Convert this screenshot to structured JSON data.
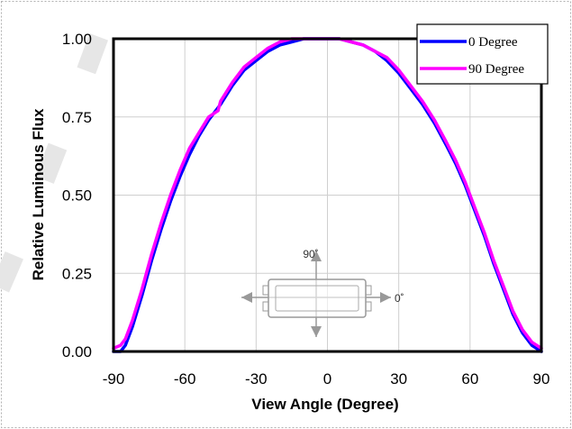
{
  "chart_data": {
    "type": "line",
    "title": "",
    "xlabel": "View Angle (Degree)",
    "ylabel": "Relative Luminous Flux",
    "xlim": [
      -90,
      90
    ],
    "ylim": [
      0,
      1
    ],
    "xticks": [
      -90,
      -60,
      -30,
      0,
      30,
      60,
      90
    ],
    "xtick_labels": [
      "-90",
      "-60",
      "-30",
      "0",
      "30",
      "60",
      "90"
    ],
    "yticks": [
      0,
      0.25,
      0.5,
      0.75,
      1
    ],
    "ytick_labels": [
      "0.00",
      "0.25",
      "0.50",
      "0.75",
      "1.00"
    ],
    "grid": true,
    "legend": "top-right",
    "series": [
      {
        "name": "0 Degree",
        "color": "#0000ff",
        "x": [
          -90,
          -87,
          -85,
          -82,
          -78,
          -74,
          -70,
          -66,
          -62,
          -58,
          -54,
          -50,
          -45,
          -40,
          -35,
          -30,
          -25,
          -20,
          -15,
          -10,
          -5,
          0,
          5,
          10,
          15,
          20,
          25,
          30,
          35,
          40,
          45,
          50,
          54,
          58,
          62,
          66,
          70,
          74,
          78,
          82,
          86,
          88,
          90
        ],
        "y": [
          0.0,
          0.0,
          0.02,
          0.08,
          0.18,
          0.29,
          0.39,
          0.48,
          0.56,
          0.63,
          0.69,
          0.74,
          0.79,
          0.85,
          0.9,
          0.93,
          0.96,
          0.98,
          0.99,
          1.0,
          1.0,
          1.0,
          1.0,
          0.99,
          0.98,
          0.96,
          0.93,
          0.89,
          0.84,
          0.79,
          0.73,
          0.66,
          0.6,
          0.53,
          0.45,
          0.37,
          0.28,
          0.2,
          0.12,
          0.06,
          0.02,
          0.01,
          0.0
        ]
      },
      {
        "name": "90 Degree",
        "color": "#ff00ff",
        "x": [
          -90,
          -87,
          -85,
          -82,
          -78,
          -74,
          -70,
          -66,
          -62,
          -58,
          -54,
          -50,
          -46,
          -45,
          -40,
          -35,
          -30,
          -25,
          -20,
          -15,
          -10,
          -5,
          0,
          5,
          10,
          15,
          20,
          25,
          30,
          35,
          40,
          45,
          50,
          54,
          58,
          62,
          66,
          70,
          74,
          78,
          82,
          86,
          88,
          90
        ],
        "y": [
          0.01,
          0.02,
          0.04,
          0.1,
          0.2,
          0.31,
          0.41,
          0.5,
          0.58,
          0.65,
          0.7,
          0.75,
          0.77,
          0.8,
          0.86,
          0.91,
          0.94,
          0.97,
          0.99,
          1.0,
          1.0,
          1.0,
          1.0,
          1.0,
          0.99,
          0.98,
          0.96,
          0.94,
          0.9,
          0.85,
          0.8,
          0.74,
          0.67,
          0.61,
          0.54,
          0.46,
          0.38,
          0.29,
          0.21,
          0.13,
          0.07,
          0.03,
          0.02,
          0.01
        ]
      }
    ],
    "inset": {
      "angle_vertical_label": "90˚",
      "angle_horizontal_label": "0˚"
    }
  }
}
